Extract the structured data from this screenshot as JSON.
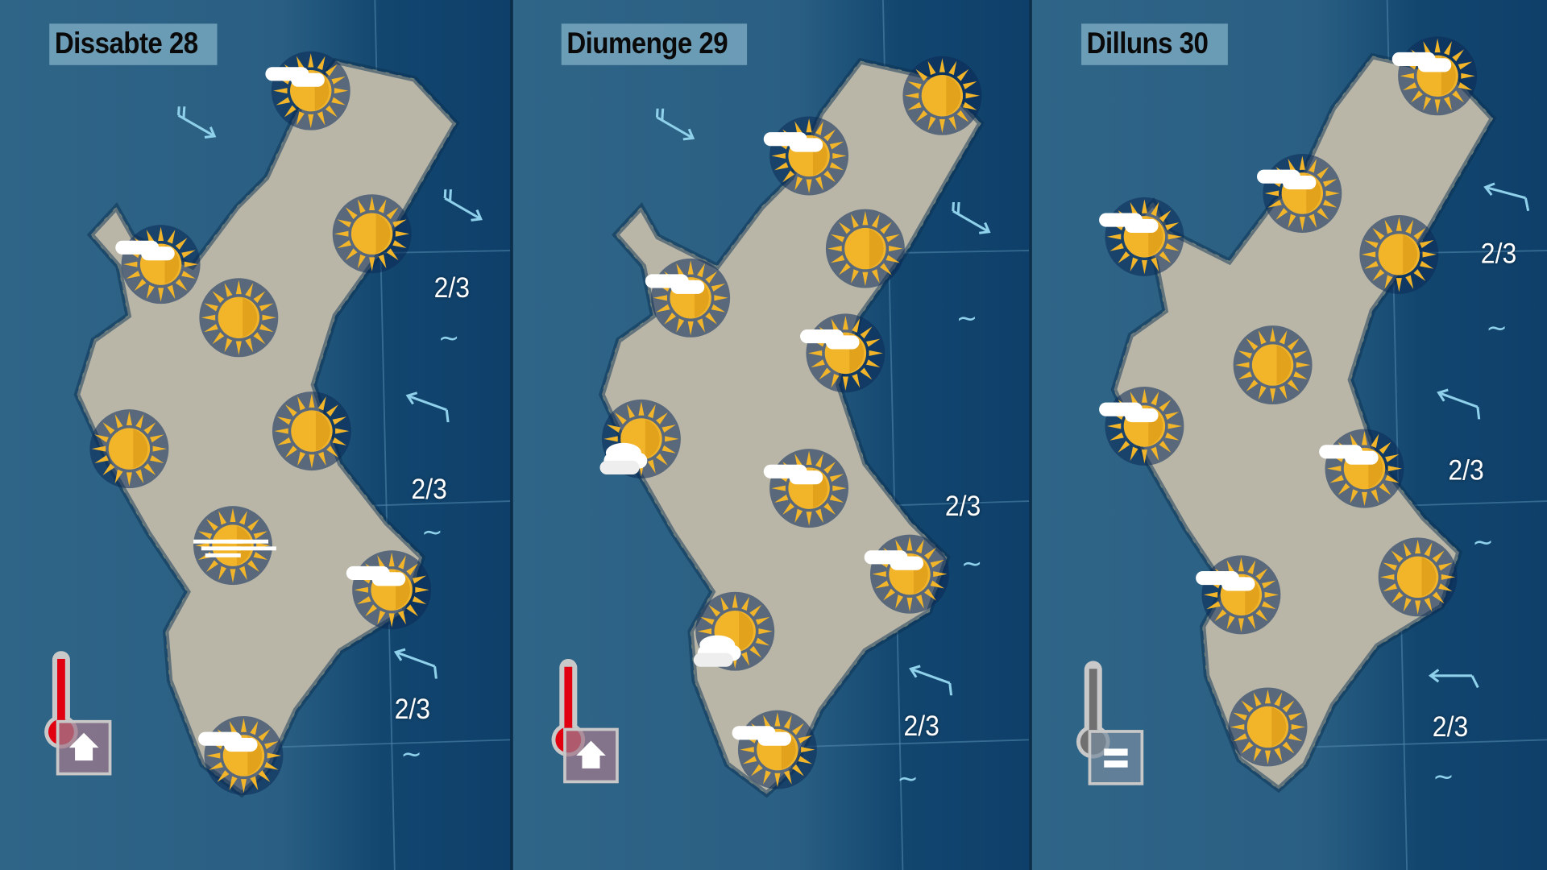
{
  "colors": {
    "sun": "#f2b52a",
    "sun_rays": "#f2b52a",
    "halo": "#0b2a55",
    "cloud": "#ffffff",
    "wind_arrow": "#8fd0ea",
    "thermo_warm": "#e00010",
    "thermo_neutral": "#707070"
  },
  "panels": [
    {
      "day": "Dissabte 28",
      "icons": [
        "sun-cloud",
        "sun",
        "sun-cloud",
        "sun",
        "sun",
        "sun",
        "sun-fog",
        "sun-cloud",
        "sun-cloud"
      ],
      "sea_states": [
        "2/3",
        "2/3",
        "2/3"
      ],
      "wave_symbol": "~",
      "wind_arrows": [
        "wind-arrow-se",
        "wind-arrow-se",
        "wind-arrow-nw",
        "wind-arrow-nw"
      ],
      "temperature_trend": "up",
      "thermometer": "warm"
    },
    {
      "day": "Diumenge 29",
      "icons": [
        "sun",
        "sun-cloud",
        "sun",
        "sun-cloud",
        "sun-cloud",
        "sun-clouds",
        "sun-cloud",
        "sun-cloud",
        "sun-clouds",
        "sun-cloud"
      ],
      "sea_states": [
        "2/3",
        "2/3"
      ],
      "wave_symbol": "~",
      "wind_arrows": [
        "wind-arrow-se",
        "wind-arrow-se",
        "wind-arrow-nw"
      ],
      "temperature_trend": "up",
      "thermometer": "warm"
    },
    {
      "day": "Dilluns 30",
      "icons": [
        "sun-cloud",
        "sun-cloud",
        "sun-cloud",
        "sun",
        "sun",
        "sun-cloud",
        "sun-cloud",
        "sun-cloud",
        "sun",
        "sun"
      ],
      "sea_states": [
        "2/3",
        "2/3",
        "2/3"
      ],
      "wave_symbol": "~",
      "wind_arrows": [
        "wind-arrow-nw",
        "wind-arrow-nw",
        "wind-arrow-w"
      ],
      "temperature_trend": "equal",
      "thermometer": "neutral"
    }
  ]
}
